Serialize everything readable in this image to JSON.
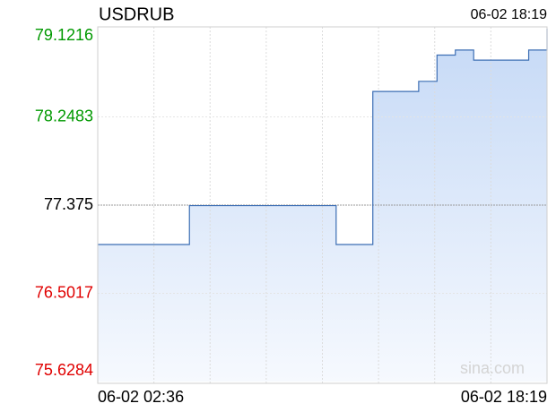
{
  "chart_data": {
    "type": "step-area",
    "title": "USDRUB",
    "timestamp": "06-02 18:19",
    "watermark": "sina.com",
    "categories": [
      "06-02 02:36",
      null,
      null,
      null,
      null,
      null,
      null,
      null,
      null,
      null,
      null,
      null,
      null,
      null,
      null,
      null,
      null,
      null,
      null,
      null,
      null,
      null,
      null,
      null,
      null,
      null,
      null,
      null,
      null,
      null,
      null,
      null,
      null,
      null,
      null,
      null,
      null,
      null,
      null,
      null,
      null,
      null,
      null,
      null,
      null,
      null,
      null,
      null,
      null,
      "06-02 18:19"
    ],
    "series": [
      {
        "name": "USDRUB",
        "color": "#3c6eb4",
        "values": [
          76.985,
          76.985,
          76.985,
          76.985,
          76.985,
          76.985,
          76.985,
          76.985,
          76.985,
          76.985,
          77.37,
          77.37,
          77.37,
          77.37,
          77.37,
          77.37,
          77.37,
          77.37,
          77.37,
          77.37,
          77.37,
          77.37,
          77.37,
          77.37,
          77.37,
          77.37,
          76.985,
          76.985,
          76.985,
          76.985,
          78.5,
          78.5,
          78.5,
          78.5,
          78.5,
          78.6,
          78.6,
          78.86,
          78.86,
          78.91,
          78.91,
          78.81,
          78.81,
          78.81,
          78.81,
          78.81,
          78.81,
          78.91,
          78.91,
          79.1216
        ]
      }
    ],
    "ylim": [
      75.6284,
      79.1216
    ],
    "yticks": [
      75.6284,
      76.5017,
      77.375,
      78.2483,
      79.1216
    ],
    "ytick_colors": [
      "#e00000",
      "#e00000",
      "#000000",
      "#009900",
      "#009900"
    ],
    "grid": true
  }
}
